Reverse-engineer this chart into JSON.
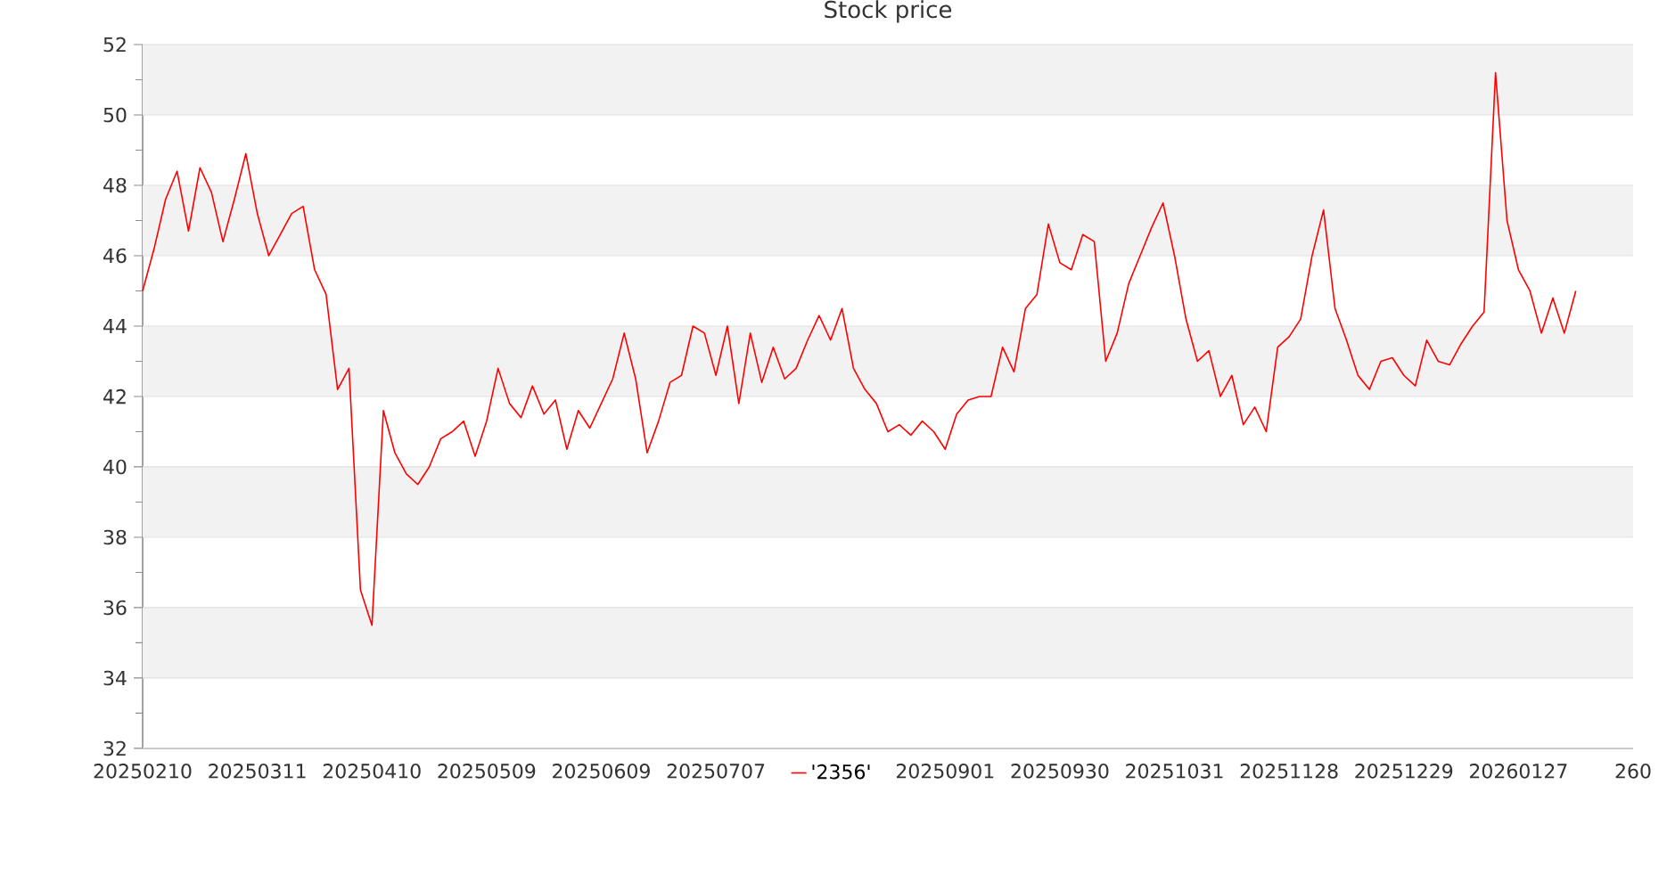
{
  "chart_data": {
    "type": "line",
    "title": "Stock price",
    "categories": [
      "20250210",
      null,
      null,
      null,
      null,
      null,
      null,
      null,
      null,
      null,
      "20250311",
      null,
      null,
      null,
      null,
      null,
      null,
      null,
      null,
      null,
      "20250410",
      null,
      null,
      null,
      null,
      null,
      null,
      null,
      null,
      null,
      "20250509",
      null,
      null,
      null,
      null,
      null,
      null,
      null,
      null,
      null,
      "20250609",
      null,
      null,
      null,
      null,
      null,
      null,
      null,
      null,
      null,
      "20250707",
      null,
      null,
      null,
      null,
      null,
      null,
      null,
      null,
      null,
      null,
      null,
      null,
      null,
      null,
      null,
      null,
      null,
      null,
      null,
      "20250901",
      null,
      null,
      null,
      null,
      null,
      null,
      null,
      null,
      null,
      "20250930",
      null,
      null,
      null,
      null,
      null,
      null,
      null,
      null,
      null,
      "20251031",
      null,
      null,
      null,
      null,
      null,
      null,
      null,
      null,
      null,
      "20251128",
      null,
      null,
      null,
      null,
      null,
      null,
      null,
      null,
      null,
      "20251229",
      null,
      null,
      null,
      null,
      null,
      null,
      null,
      null,
      null,
      "20260127",
      null,
      null,
      null,
      null,
      null,
      null,
      null,
      null,
      null,
      "260"
    ],
    "series": [
      {
        "name": "'2356'",
        "color": "#ff0000",
        "values": [
          45.0,
          46.2,
          47.6,
          48.4,
          46.7,
          48.5,
          47.8,
          46.4,
          47.6,
          48.9,
          47.2,
          46.0,
          46.6,
          47.2,
          47.4,
          45.6,
          44.9,
          42.2,
          42.8,
          36.5,
          35.5,
          41.6,
          40.4,
          39.8,
          39.5,
          40.0,
          40.8,
          41.0,
          41.3,
          40.3,
          41.3,
          42.8,
          41.8,
          41.4,
          42.3,
          41.5,
          41.9,
          40.5,
          41.6,
          41.1,
          41.8,
          42.5,
          43.8,
          42.5,
          40.4,
          41.3,
          42.4,
          42.6,
          44.0,
          43.8,
          42.6,
          44.0,
          41.8,
          43.8,
          42.4,
          43.4,
          42.5,
          42.8,
          43.6,
          44.3,
          43.6,
          44.5,
          42.8,
          42.2,
          41.8,
          41.0,
          41.2,
          40.9,
          41.3,
          41.0,
          40.5,
          41.5,
          41.9,
          42.0,
          42.0,
          43.4,
          42.7,
          44.5,
          44.9,
          46.9,
          45.8,
          45.6,
          46.6,
          46.4,
          43.0,
          43.8,
          45.2,
          46.0,
          46.8,
          47.5,
          46.0,
          44.2,
          43.0,
          43.3,
          42.0,
          42.6,
          41.2,
          41.7,
          41.0,
          43.4,
          43.7,
          44.2,
          46.0,
          47.3,
          44.5,
          43.6,
          42.6,
          42.2,
          43.0,
          43.1,
          42.6,
          42.3,
          43.6,
          43.0,
          42.9,
          43.5,
          44.0,
          44.4,
          51.2,
          47.0,
          45.6,
          45.0,
          43.8,
          44.8,
          43.8,
          45.0,
          null,
          null,
          null,
          null,
          null
        ]
      }
    ],
    "ylim": [
      32,
      52
    ],
    "yticks": [
      32,
      34,
      36,
      38,
      40,
      42,
      44,
      46,
      48,
      50,
      52
    ],
    "grid": "y",
    "legend": "bottom"
  }
}
